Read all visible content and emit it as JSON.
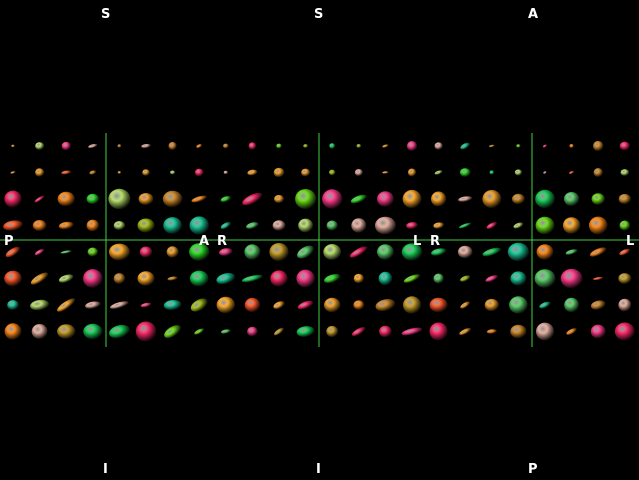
{
  "viewer": {
    "crosshair_color": "#3fd13f",
    "background": "#000000",
    "panels": [
      {
        "name": "sagittal",
        "labels": {
          "top": "S",
          "bottom": "I",
          "left": "P",
          "right": "A"
        }
      },
      {
        "name": "coronal",
        "labels": {
          "top": "S",
          "bottom": "I",
          "left": "R",
          "right": "L"
        }
      },
      {
        "name": "axial",
        "labels": {
          "top": "A",
          "bottom": "P",
          "left": "R",
          "right": "L"
        }
      }
    ]
  }
}
